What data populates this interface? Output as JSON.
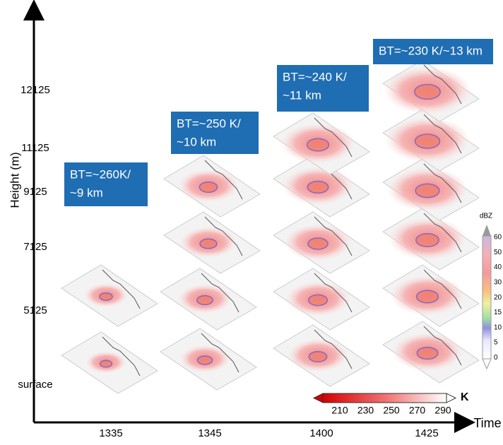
{
  "y_axis": {
    "label": "Height (m)",
    "levels": [
      "12125",
      "11125",
      "9125",
      "7125",
      "5125",
      "surface"
    ]
  },
  "x_axis": {
    "label": "Time",
    "times": [
      "1335",
      "1345",
      "1400",
      "1425"
    ]
  },
  "bt_boxes": [
    {
      "lines": [
        "BT=~260K/",
        "~9 km"
      ]
    },
    {
      "lines": [
        "BT=~250 K/",
        "~10 km"
      ]
    },
    {
      "lines": [
        "BT=~240 K/",
        "~11 km"
      ]
    },
    {
      "lines": [
        "BT=~230 K/~13 km"
      ]
    }
  ],
  "dbz_colorbar": {
    "unit": "dBZ",
    "ticks": [
      "60",
      "50",
      "40",
      "30",
      "20",
      "15",
      "10",
      "5",
      "0"
    ]
  },
  "k_colorbar": {
    "unit": "K",
    "ticks": [
      "210",
      "230",
      "250",
      "270",
      "290"
    ]
  }
}
